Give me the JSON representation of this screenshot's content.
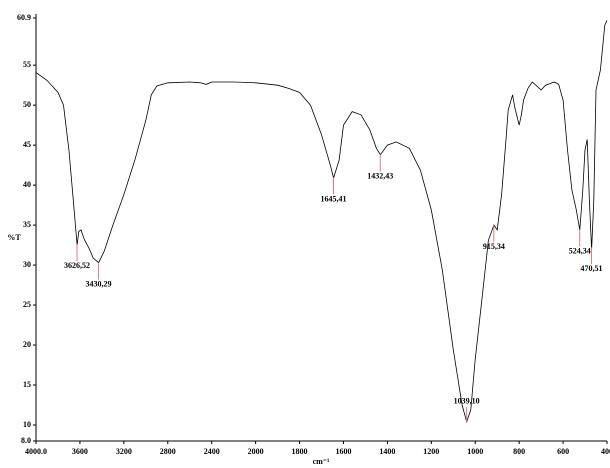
{
  "chart_data": {
    "type": "line",
    "x_label": "cm⁻¹",
    "y_label": "%T",
    "xlim": [
      4000,
      400
    ],
    "xticks": [
      {
        "value": 4000,
        "label": "4000.0"
      },
      3600,
      3200,
      2800,
      2400,
      2000,
      1800,
      1600,
      1400,
      1200,
      1000,
      800,
      600,
      400
    ],
    "ylim": [
      8,
      60.9
    ],
    "yticks": [
      {
        "value": 8,
        "label": "8.0"
      },
      10,
      15,
      20,
      25,
      30,
      35,
      40,
      45,
      50,
      55,
      60.9
    ],
    "series": [
      {
        "color": "#000000",
        "x": [
          4000,
          3900,
          3800,
          3750,
          3700,
          3660,
          3626,
          3610,
          3590,
          3560,
          3520,
          3480,
          3430,
          3380,
          3300,
          3200,
          3100,
          3000,
          2950,
          2900,
          2800,
          2600,
          2500,
          2450,
          2400,
          2200,
          2000,
          1900,
          1850,
          1800,
          1750,
          1700,
          1660,
          1645,
          1620,
          1600,
          1560,
          1520,
          1480,
          1450,
          1432,
          1400,
          1360,
          1300,
          1250,
          1200,
          1150,
          1100,
          1060,
          1039,
          1020,
          1000,
          970,
          940,
          915,
          900,
          880,
          860,
          850,
          830,
          820,
          800,
          790,
          780,
          760,
          740,
          720,
          700,
          680,
          640,
          620,
          600,
          580,
          560,
          540,
          524,
          510,
          500,
          490,
          480,
          470,
          460,
          450,
          430,
          410,
          400
        ],
        "values": [
          54.1,
          53.1,
          51.6,
          50.0,
          44.4,
          38.1,
          32.5,
          34.2,
          34.4,
          33.2,
          32.2,
          30.9,
          30.3,
          31.7,
          35.0,
          38.8,
          43.1,
          48.1,
          51.3,
          52.4,
          52.8,
          52.9,
          52.8,
          52.6,
          52.9,
          52.9,
          52.8,
          52.5,
          52.1,
          51.6,
          50.0,
          46.3,
          42.5,
          40.9,
          43.1,
          47.5,
          49.2,
          48.8,
          46.9,
          44.6,
          43.8,
          45.0,
          45.4,
          44.6,
          41.9,
          36.9,
          29.4,
          19.4,
          12.5,
          10.4,
          11.9,
          18.2,
          25.6,
          33.1,
          35.0,
          34.4,
          38.8,
          45.7,
          49.4,
          51.3,
          49.7,
          47.5,
          48.8,
          50.6,
          52.1,
          52.9,
          52.4,
          51.9,
          52.5,
          52.9,
          52.6,
          50.6,
          44.4,
          39.4,
          36.9,
          34.4,
          39.4,
          44.4,
          45.7,
          38.1,
          31.9,
          38.1,
          51.9,
          54.4,
          60.0,
          60.6
        ]
      }
    ],
    "annotations": [
      {
        "x": 3626.52,
        "label": "3626,52"
      },
      {
        "x": 3430.29,
        "label": "3430,29"
      },
      {
        "x": 1645.41,
        "label": "1645,41"
      },
      {
        "x": 1432.43,
        "label": "1432,43"
      },
      {
        "x": 1039.1,
        "label": "1039,10"
      },
      {
        "x": 915.34,
        "label": "915,34"
      },
      {
        "x": 524.34,
        "label": "524,34"
      },
      {
        "x": 470.51,
        "label": "470,51"
      }
    ],
    "annotation_color": "#e87878"
  }
}
